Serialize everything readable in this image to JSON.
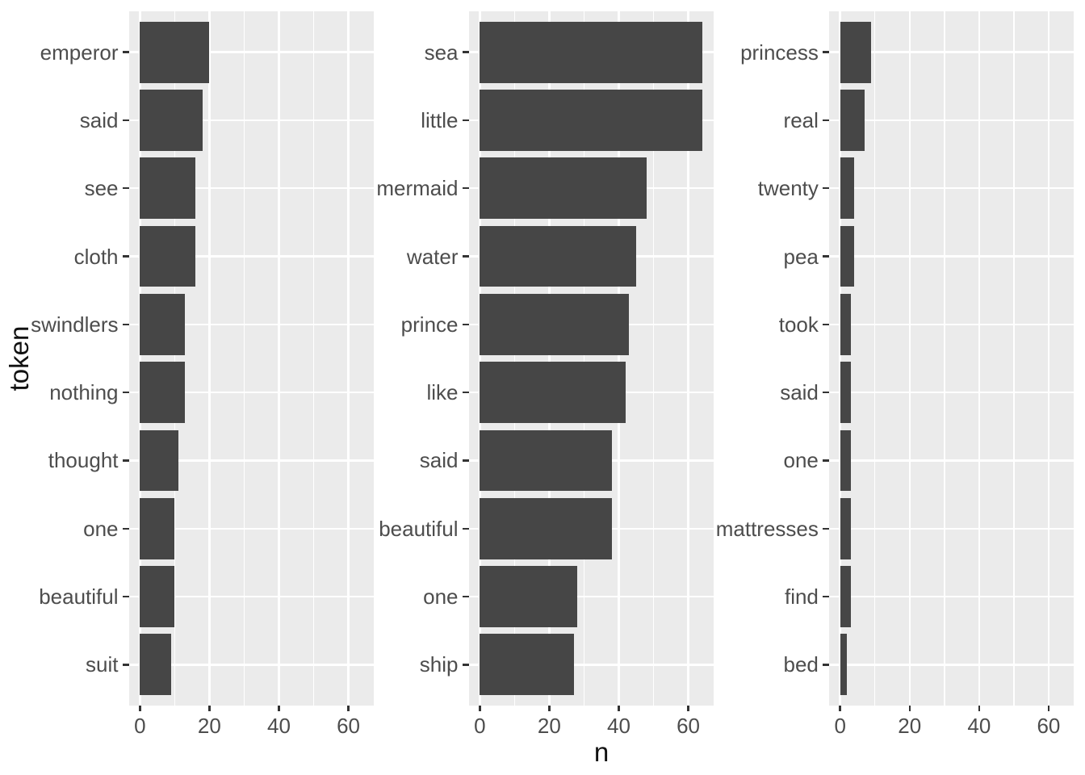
{
  "axis": {
    "x_title": "n",
    "y_title": "token",
    "x_tick_labels": [
      "0",
      "20",
      "40",
      "60"
    ]
  },
  "colors": {
    "background": "#FFFFFF",
    "panel_bg": "#EBEBEB",
    "bar": "#464646",
    "grid": "#FFFFFF",
    "axis_text": "#4D4D4D",
    "axis_title": "#111111",
    "tick_mark": "#333333"
  },
  "chart_data": [
    {
      "type": "bar",
      "orientation": "horizontal",
      "panel": "left",
      "xlabel": "n",
      "ylabel": "token",
      "xlim": [
        0,
        67
      ],
      "x_ticks": [
        0,
        20,
        40,
        60
      ],
      "grid": true,
      "categories": [
        "emperor",
        "said",
        "see",
        "cloth",
        "swindlers",
        "nothing",
        "thought",
        "one",
        "beautiful",
        "suit"
      ],
      "values": [
        20,
        18,
        16,
        16,
        13,
        13,
        11,
        10,
        10,
        9
      ]
    },
    {
      "type": "bar",
      "orientation": "horizontal",
      "panel": "middle",
      "xlabel": "n",
      "ylabel": "token",
      "xlim": [
        0,
        67
      ],
      "x_ticks": [
        0,
        20,
        40,
        60
      ],
      "grid": true,
      "categories": [
        "sea",
        "little",
        "mermaid",
        "water",
        "prince",
        "like",
        "said",
        "beautiful",
        "one",
        "ship"
      ],
      "values": [
        64,
        64,
        48,
        45,
        43,
        42,
        38,
        38,
        28,
        27
      ]
    },
    {
      "type": "bar",
      "orientation": "horizontal",
      "panel": "right",
      "xlabel": "n",
      "ylabel": "token",
      "xlim": [
        0,
        67
      ],
      "x_ticks": [
        0,
        20,
        40,
        60
      ],
      "grid": true,
      "categories": [
        "princess",
        "real",
        "twenty",
        "pea",
        "took",
        "said",
        "one",
        "mattresses",
        "find",
        "bed"
      ],
      "values": [
        9,
        7,
        4,
        4,
        3,
        3,
        3,
        3,
        3,
        2
      ]
    }
  ]
}
